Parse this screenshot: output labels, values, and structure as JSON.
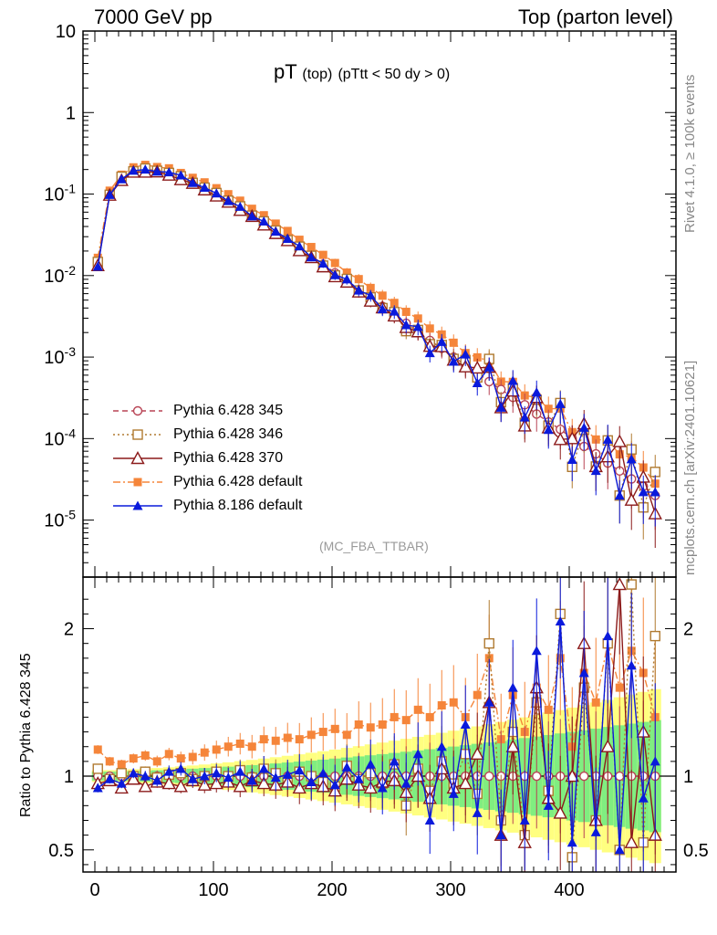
{
  "header": {
    "left": "7000 GeV pp",
    "right": "Top (parton level)"
  },
  "plot_title": {
    "main": "pT",
    "sub1": "(top)",
    "sub2": "(pTtt < 50 dy > 0)"
  },
  "watermark": "(MC_FBA_TTBAR)",
  "side_labels": {
    "rivet": "Rivet 4.1.0, ≥ 100k events",
    "mcplots": "mcplots.cern.ch [arXiv:2401.10621]"
  },
  "ratio_ylabel": "Ratio to Pythia 6.428 345",
  "colors": {
    "s345": "#b84455",
    "s346": "#b07a30",
    "s370": "#8b1a1a",
    "s6def": "#f5853a",
    "s8def": "#0a1adc",
    "band_yellow": "#ffff80",
    "band_green": "#80ee80"
  },
  "chart_data": {
    "type": "line",
    "title": "pT (top) (pTtt < 50 dy > 0)",
    "xlabel": "",
    "ylabel": "",
    "xlim": [
      -10,
      490
    ],
    "ylim": [
      2e-06,
      10
    ],
    "yscale": "log",
    "ratio_ylim": [
      0.35,
      2.35
    ],
    "x_ticks": [
      "0",
      "100",
      "200",
      "300",
      "400"
    ],
    "y_ticks": [
      "10",
      "1",
      "10^-1",
      "10^-2",
      "10^-3",
      "10^-4",
      "10^-5"
    ],
    "ratio_ticks": [
      "0.5",
      "1",
      "2"
    ],
    "x": [
      2.5,
      12.5,
      22.5,
      32.5,
      42.5,
      52.5,
      62.5,
      72.5,
      82.5,
      92.5,
      102.5,
      112.5,
      122.5,
      132.5,
      142.5,
      152.5,
      162.5,
      172.5,
      182.5,
      192.5,
      202.5,
      212.5,
      222.5,
      232.5,
      242.5,
      252.5,
      262.5,
      272.5,
      282.5,
      292.5,
      302.5,
      312.5,
      322.5,
      332.5,
      342.5,
      352.5,
      362.5,
      372.5,
      382.5,
      392.5,
      402.5,
      412.5,
      422.5,
      432.5,
      442.5,
      452.5,
      462.5,
      472.5
    ],
    "reference_values": [
      0.014,
      0.1,
      0.16,
      0.19,
      0.2,
      0.195,
      0.18,
      0.162,
      0.14,
      0.12,
      0.1,
      0.083,
      0.068,
      0.055,
      0.044,
      0.035,
      0.028,
      0.022,
      0.0175,
      0.0138,
      0.0108,
      0.0085,
      0.0067,
      0.0053,
      0.0042,
      0.0033,
      0.0026,
      0.00205,
      0.0016,
      0.00128,
      0.001,
      0.0008,
      0.00064,
      0.0005,
      0.0004,
      0.00032,
      0.00026,
      0.0002,
      0.00016,
      0.00013,
      0.0001,
      8e-05,
      6.5e-05,
      5e-05,
      4e-05,
      3.2e-05,
      2.6e-05,
      2e-05
    ],
    "series": [
      {
        "name": "Pythia 6.428 345",
        "key": "s345",
        "style": "dashed",
        "marker": "open-circle",
        "ratio": [
          1.0,
          1.0,
          1.0,
          1.0,
          1.0,
          1.0,
          1.0,
          1.0,
          1.0,
          1.0,
          1.0,
          1.0,
          1.0,
          1.0,
          1.0,
          1.0,
          1.0,
          1.0,
          1.0,
          1.0,
          1.0,
          1.0,
          1.0,
          1.0,
          1.0,
          1.0,
          1.0,
          1.0,
          1.0,
          1.0,
          1.0,
          1.0,
          1.0,
          1.0,
          1.0,
          1.0,
          1.0,
          1.0,
          1.0,
          1.0,
          1.0,
          1.0,
          1.0,
          1.0,
          1.0,
          1.0,
          1.0,
          1.0
        ]
      },
      {
        "name": "Pythia 6.428 346",
        "key": "s346",
        "style": "dotted",
        "marker": "open-square",
        "ratio": [
          1.05,
          0.98,
          1.02,
          1.0,
          1.03,
          0.99,
          1.01,
          1.02,
          0.98,
          1.0,
          1.03,
          1.0,
          1.04,
          0.99,
          1.05,
          1.02,
          0.97,
          1.03,
          1.0,
          0.96,
          0.93,
          1.07,
          0.98,
          1.02,
          0.95,
          1.08,
          0.8,
          1.05,
          0.9,
          1.1,
          0.95,
          1.15,
          0.88,
          1.9,
          0.7,
          1.3,
          0.6,
          1.5,
          0.9,
          2.1,
          0.45,
          1.6,
          0.7,
          1.9,
          0.5,
          2.3,
          0.55,
          1.95
        ]
      },
      {
        "name": "Pythia 6.428 370",
        "key": "s370",
        "style": "solid",
        "marker": "open-triangle",
        "ratio": [
          0.95,
          0.97,
          0.92,
          0.98,
          0.93,
          0.96,
          0.95,
          0.93,
          0.97,
          0.94,
          0.95,
          0.96,
          0.93,
          0.97,
          0.95,
          0.94,
          0.96,
          0.92,
          0.95,
          0.93,
          0.9,
          0.98,
          0.94,
          0.92,
          0.96,
          0.97,
          0.89,
          1.0,
          0.85,
          1.05,
          0.92,
          0.95,
          1.15,
          1.5,
          0.6,
          1.2,
          0.55,
          1.6,
          0.85,
          0.75,
          1.0,
          1.9,
          0.7,
          1.2,
          2.3,
          0.55,
          1.3,
          0.6
        ]
      },
      {
        "name": "Pythia 6.428 default",
        "key": "s6def",
        "style": "dashdot",
        "marker": "filled-square",
        "ratio": [
          1.18,
          1.1,
          1.08,
          1.12,
          1.14,
          1.1,
          1.15,
          1.12,
          1.13,
          1.16,
          1.18,
          1.2,
          1.22,
          1.2,
          1.25,
          1.24,
          1.26,
          1.25,
          1.28,
          1.3,
          1.32,
          1.28,
          1.35,
          1.33,
          1.35,
          1.4,
          1.38,
          1.45,
          1.4,
          1.48,
          1.5,
          1.4,
          1.55,
          1.8,
          1.25,
          1.55,
          1.3,
          1.6,
          1.45,
          1.8,
          1.2,
          1.7,
          1.5,
          1.9,
          1.6,
          1.85,
          1.7,
          1.4
        ]
      },
      {
        "name": "Pythia 8.186 default",
        "key": "s8def",
        "style": "solid",
        "marker": "filled-triangle",
        "ratio": [
          0.92,
          0.98,
          0.95,
          1.02,
          1.0,
          0.97,
          1.03,
          1.05,
          0.98,
          1.0,
          1.02,
          0.99,
          1.03,
          0.97,
          1.05,
          0.99,
          1.01,
          1.04,
          0.96,
          1.02,
          0.94,
          1.06,
          0.98,
          1.08,
          0.92,
          1.1,
          0.95,
          1.15,
          0.7,
          1.2,
          0.88,
          1.35,
          0.75,
          1.5,
          0.6,
          1.6,
          0.7,
          1.85,
          0.8,
          2.05,
          0.55,
          1.7,
          0.62,
          1.95,
          0.5,
          1.75,
          0.85,
          1.1
        ]
      }
    ]
  }
}
